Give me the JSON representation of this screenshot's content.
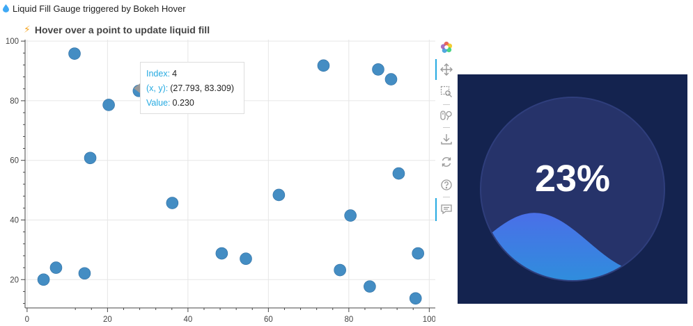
{
  "header": {
    "icon": "droplet-icon",
    "title": "Liquid Fill Gauge triggered by Bokeh Hover"
  },
  "plot": {
    "title_icon": "lightning-icon",
    "title": "Hover over a point to update liquid fill",
    "colors": {
      "point": "#3a87c0",
      "grid": "#e6e6e6",
      "axis": "#444444",
      "tooltip_key": "#26aae1"
    }
  },
  "chart_data": {
    "type": "scatter",
    "title": "Hover over a point to update liquid fill",
    "xlabel": "",
    "ylabel": "",
    "xlim": [
      -0.5,
      101.5
    ],
    "ylim": [
      10.5,
      100.5
    ],
    "xticks": [
      0,
      20,
      40,
      60,
      80,
      100
    ],
    "yticks": [
      20,
      40,
      60,
      80,
      100
    ],
    "grid": true,
    "points": [
      {
        "x": 11.8,
        "y": 95.8
      },
      {
        "x": 20.3,
        "y": 78.6
      },
      {
        "x": 15.7,
        "y": 60.8
      },
      {
        "x": 4.1,
        "y": 20.0
      },
      {
        "x": 27.793,
        "y": 83.309
      },
      {
        "x": 7.2,
        "y": 24.0
      },
      {
        "x": 14.3,
        "y": 22.1
      },
      {
        "x": 36.1,
        "y": 45.7
      },
      {
        "x": 48.4,
        "y": 28.8
      },
      {
        "x": 54.4,
        "y": 27.0
      },
      {
        "x": 62.6,
        "y": 48.4
      },
      {
        "x": 73.7,
        "y": 91.8
      },
      {
        "x": 87.3,
        "y": 90.5
      },
      {
        "x": 90.5,
        "y": 87.2
      },
      {
        "x": 92.4,
        "y": 55.6
      },
      {
        "x": 80.4,
        "y": 41.5
      },
      {
        "x": 77.8,
        "y": 23.2
      },
      {
        "x": 85.2,
        "y": 17.7
      },
      {
        "x": 97.2,
        "y": 28.8
      },
      {
        "x": 96.6,
        "y": 13.7
      }
    ]
  },
  "tooltip": {
    "index_label": "Index:",
    "index_value": "4",
    "xy_label": " (x, y):",
    "xy_value": "(27.793, 83.309)",
    "value_label": "Value:",
    "value_value": "0.230"
  },
  "toolbar": {
    "tools": [
      "bokeh-logo-icon",
      "pan-icon",
      "box-zoom-icon",
      "wheel-zoom-icon",
      "save-icon",
      "reset-icon",
      "help-icon",
      "hover-icon"
    ]
  },
  "gauge": {
    "value": 0.23,
    "label": "23%",
    "colors": {
      "panel": "#14234f",
      "circle": "#26336a",
      "wave_top": "#4a6fe8",
      "wave_bottom": "#2e8fdc",
      "text": "#ffffff"
    }
  }
}
